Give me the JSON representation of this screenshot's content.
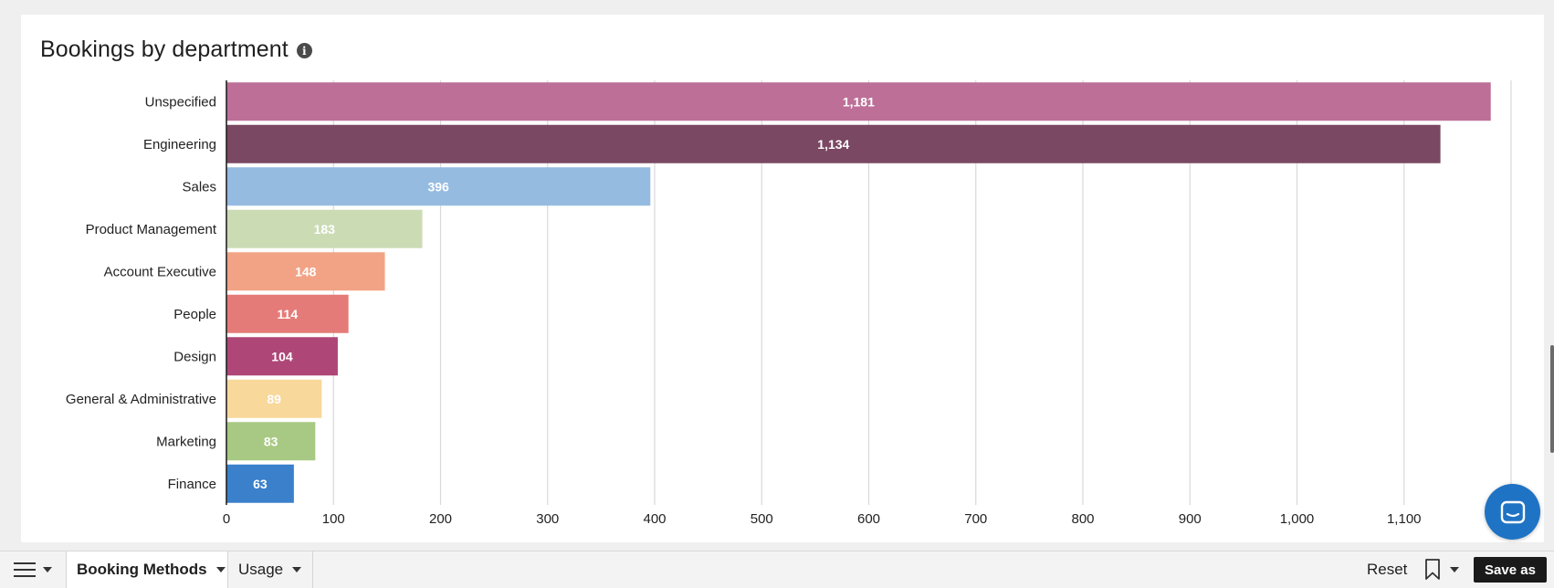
{
  "card": {
    "title": "Bookings by department"
  },
  "chart_data": {
    "type": "bar",
    "orientation": "horizontal",
    "title": "Bookings by department",
    "categories": [
      "Unspecified",
      "Engineering",
      "Sales",
      "Product Management",
      "Account Executive",
      "People",
      "Design",
      "General & Administrative",
      "Marketing",
      "Finance"
    ],
    "values": [
      1181,
      1134,
      396,
      183,
      148,
      114,
      104,
      89,
      83,
      63
    ],
    "value_labels": [
      "1,181",
      "1,134",
      "396",
      "183",
      "148",
      "114",
      "104",
      "89",
      "83",
      "63"
    ],
    "colors": [
      "#bd6f98",
      "#7a4862",
      "#96bbe1",
      "#cbdcb5",
      "#f2a385",
      "#e47b78",
      "#ae4677",
      "#f8d89b",
      "#a8c983",
      "#3a80cb"
    ],
    "label_colors": [
      "#ffffff",
      "#ffffff",
      "#ffffff",
      "#ffffff",
      "#ffffff",
      "#ffffff",
      "#ffffff",
      "#ffffff",
      "#ffffff",
      "#ffffff"
    ],
    "x_ticks": [
      0,
      100,
      200,
      300,
      400,
      500,
      600,
      700,
      800,
      900,
      1000,
      1100
    ],
    "x_tick_labels": [
      "0",
      "100",
      "200",
      "300",
      "400",
      "500",
      "600",
      "700",
      "800",
      "900",
      "1,000",
      "1,100"
    ],
    "xlim": [
      0,
      1200
    ],
    "grid": true,
    "xlabel": "",
    "ylabel": ""
  },
  "toolbar": {
    "tabs": [
      {
        "label": "Booking Methods"
      },
      {
        "label": "Usage"
      }
    ],
    "reset_label": "Reset",
    "save_label": "Save as"
  },
  "icons": {
    "info": "info-icon",
    "menu": "hamburger-icon",
    "bookmark": "bookmark-icon",
    "chat": "chat-icon"
  }
}
